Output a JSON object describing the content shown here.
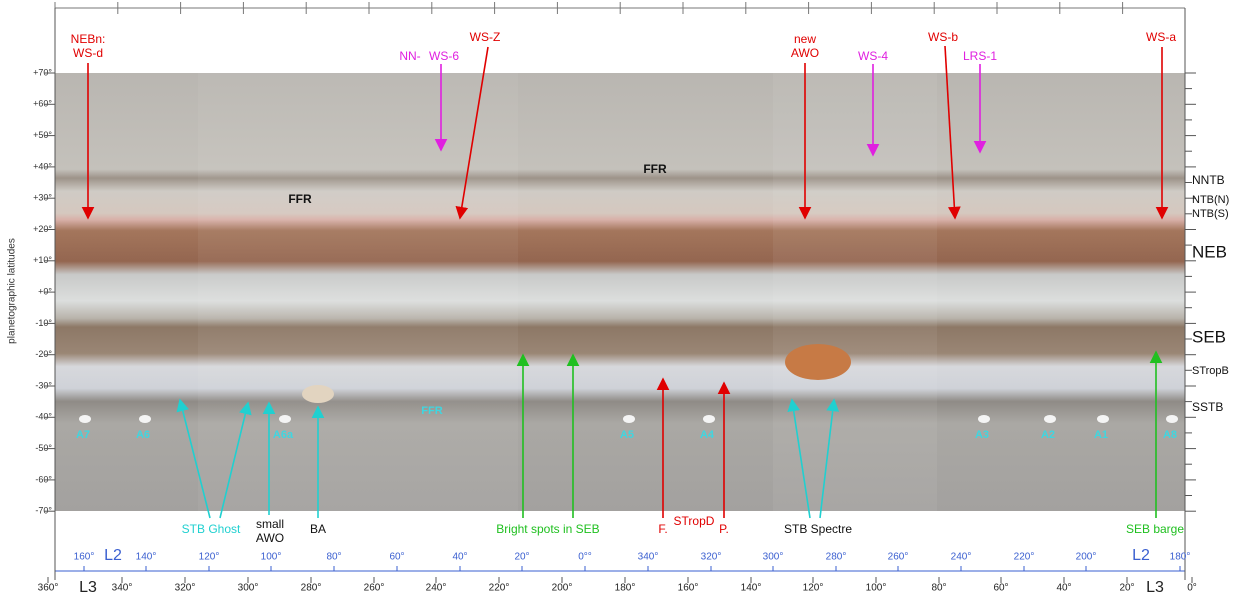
{
  "latitude_axis": {
    "title": "planetographic latitudes",
    "labels": [
      "+70°",
      "+60°",
      "+50°",
      "+40°",
      "+30°",
      "+20°",
      "+10°",
      "+0°",
      "-10°",
      "-20°",
      "-30°",
      "-40°",
      "-50°",
      "-60°",
      "-70°"
    ]
  },
  "longitude_axis": {
    "L2": {
      "name": "L2",
      "labels": [
        "160°",
        "140°",
        "120°",
        "100°",
        "80°",
        "60°",
        "40°",
        "20°",
        "0°°",
        "340°",
        "320°",
        "300°",
        "280°",
        "260°",
        "240°",
        "220°",
        "200°",
        "180°"
      ]
    },
    "L3": {
      "name": "L3",
      "labels": [
        "360°",
        "340°",
        "320°",
        "300°",
        "280°",
        "260°",
        "240°",
        "220°",
        "200°",
        "180°",
        "160°",
        "140°",
        "120°",
        "100°",
        "80°",
        "60°",
        "40°",
        "20°",
        "0°"
      ]
    }
  },
  "belts": [
    "NNTB",
    "NTB(N)",
    "NTB(S)",
    "NEB",
    "SEB",
    "STropB",
    "SSTB"
  ],
  "annotations": [
    [
      "NEBn:",
      "WS-d"
    ],
    [
      "NN-"
    ],
    [
      "WS-6"
    ],
    [
      "WS-Z"
    ],
    [
      "new",
      "AWO"
    ],
    [
      "WS-4"
    ],
    [
      "WS-b"
    ],
    [
      "LRS-1"
    ],
    [
      "WS-a"
    ],
    [
      "FFR"
    ],
    [
      "FFR"
    ],
    [
      "STB Ghost"
    ],
    [
      "small",
      "AWO"
    ],
    [
      "BA"
    ],
    [
      "Bright spots in SEB"
    ],
    [
      "F."
    ],
    [
      "STropD"
    ],
    [
      "P."
    ],
    [
      "STB Spectre"
    ],
    [
      "SEB barge"
    ]
  ],
  "spots": [
    "A7",
    "A6",
    "A6a",
    "FFR",
    "A5",
    "A4",
    "A3",
    "A2",
    "A1",
    "A8"
  ]
}
